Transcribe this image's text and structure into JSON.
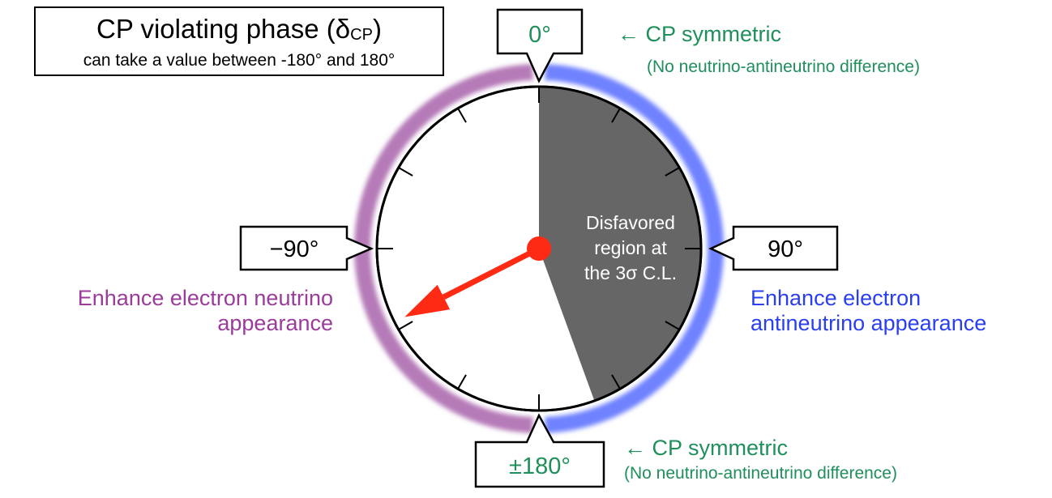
{
  "title": {
    "main": "CP violating phase (δ",
    "main_sub": "CP",
    "main_close": ")",
    "sub": "can take a value  between -180° and 180°"
  },
  "dial": {
    "value_deg": -117,
    "disfavored_from_deg": 0,
    "disfavored_to_deg": 160,
    "left_arc_color": "#b57ab8",
    "right_arc_color": "#6f82ff",
    "disfavored_color": "#666666",
    "arrow_color": "#ff2a14",
    "region_label": [
      "Disfavored",
      "region at",
      "the 3σ C.L."
    ]
  },
  "labels": {
    "top": "0°",
    "right": "90°",
    "left": "−90°",
    "bottom": "±180°"
  },
  "notes": {
    "top_symmetric": "← CP symmetric",
    "top_difference": "(No neutrino-antineutrino difference)",
    "bottom_symmetric": "← CP symmetric",
    "bottom_difference": "(No neutrino-antineutrino difference)",
    "left_line1": "Enhance electron neutrino",
    "left_line2": "appearance",
    "right_line1": "Enhance electron",
    "right_line2": "antineutrino appearance"
  }
}
